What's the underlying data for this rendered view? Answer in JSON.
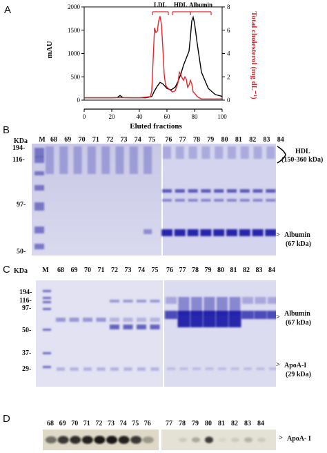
{
  "panels": {
    "a": "A",
    "b": "B",
    "c": "C",
    "d": "D"
  },
  "chart_data": {
    "type": "line",
    "xlabel": "Eluted fractions",
    "ylabel_left": "mAU",
    "ylabel_right": "Total cholesterol (mg dL⁻¹)",
    "xlim": [
      0,
      100
    ],
    "ylim_left": [
      0,
      2000
    ],
    "ylim_right": [
      0,
      8
    ],
    "x_ticks": [
      "0",
      "20",
      "40",
      "60",
      "80",
      "100"
    ],
    "y_left_ticks": [
      "0",
      "500",
      "1000",
      "1500",
      "2000"
    ],
    "y_right_ticks": [
      "0",
      "2",
      "4",
      "6",
      "8"
    ],
    "annotations": [
      "LDL",
      "HDL",
      "Albumin"
    ],
    "series": [
      {
        "axis": "left",
        "color": "#000000",
        "x": [
          0,
          10,
          20,
          24,
          26,
          28,
          35,
          45,
          49,
          51,
          53,
          55,
          57,
          60,
          63,
          66,
          68,
          70,
          72,
          74,
          76,
          77,
          78,
          79,
          80,
          82,
          85,
          90,
          95,
          100
        ],
        "y": [
          50,
          50,
          50,
          55,
          100,
          55,
          50,
          50,
          80,
          200,
          300,
          380,
          350,
          250,
          220,
          280,
          400,
          550,
          750,
          900,
          1050,
          1350,
          1700,
          1780,
          1650,
          1200,
          600,
          250,
          120,
          80
        ]
      },
      {
        "axis": "right",
        "color": "#e8232a",
        "x": [
          0,
          20,
          40,
          48,
          49,
          50,
          51,
          52,
          53,
          54,
          55,
          56,
          57,
          58,
          59,
          60,
          62,
          64,
          66,
          68,
          69,
          70,
          71,
          72,
          73,
          74,
          75,
          76,
          77,
          78,
          79,
          80,
          82,
          85,
          90,
          100
        ],
        "y": [
          0.2,
          0.2,
          0.2,
          0.3,
          0.8,
          3.5,
          6.2,
          5.8,
          5.9,
          6.8,
          7.2,
          6.5,
          4.5,
          2.2,
          1.3,
          1.1,
          0.9,
          0.7,
          0.8,
          1.5,
          2.4,
          2.2,
          1.9,
          1.7,
          2.0,
          1.8,
          1.1,
          1.3,
          1.7,
          1.4,
          0.7,
          0.6,
          0.3,
          0.1,
          0.1,
          0.1
        ]
      }
    ]
  },
  "gel_b": {
    "unit": "KDa",
    "marker": "M",
    "lanes": [
      "68",
      "69",
      "70",
      "71",
      "72",
      "73",
      "74",
      "75",
      "76",
      "77",
      "78",
      "79",
      "80",
      "81",
      "82",
      "83",
      "84"
    ],
    "mw": [
      "194-",
      "116-",
      "97-",
      "50-"
    ],
    "right_labels": {
      "hdl": "HDL",
      "hdl_range": "(150-360 kDa)",
      "albumin": "Albumin",
      "albumin_size": "(67 kDa)"
    }
  },
  "gel_c": {
    "unit": "KDa",
    "marker": "M",
    "lanes_left": [
      "68",
      "69",
      "70",
      "71",
      "72",
      "73",
      "74",
      "75"
    ],
    "lanes_right": [
      "76",
      "77",
      "78",
      "79",
      "80",
      "81",
      "82",
      "83",
      "84"
    ],
    "mw": [
      "194-",
      "116-",
      "97-",
      "50-",
      "37-",
      "29-"
    ],
    "right_labels": {
      "albumin": "Albumin",
      "albumin_size": "(67 kDa)",
      "apoa": "ApoA-I",
      "apoa_size": "(29 kDa)"
    }
  },
  "blot_d": {
    "lanes_left": [
      "68",
      "69",
      "70",
      "71",
      "72",
      "73",
      "74",
      "75",
      "76"
    ],
    "lanes_right": [
      "77",
      "78",
      "79",
      "80",
      "81",
      "82",
      "83",
      "84"
    ],
    "label": "ApoA- I"
  }
}
